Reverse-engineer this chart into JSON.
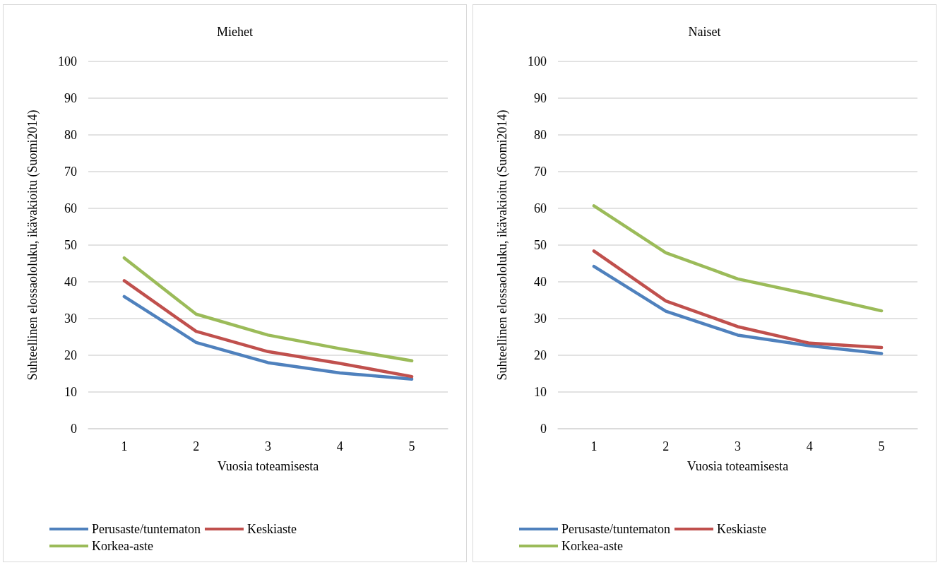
{
  "chart_data": [
    {
      "type": "line",
      "title": "Miehet",
      "xlabel": "Vuosia toteamisesta",
      "ylabel": "Suhteellinen elossaololuku, ikävakioitu (Suomi2014)",
      "categories": [
        "1",
        "2",
        "3",
        "4",
        "5"
      ],
      "ylim": [
        0,
        100
      ],
      "yticks": [
        0,
        10,
        20,
        30,
        40,
        50,
        60,
        70,
        80,
        90,
        100
      ],
      "grid": "y",
      "legend": "bottom",
      "marker": "none",
      "line_style": "solid",
      "series": [
        {
          "name": "Perusaste/tuntematon",
          "color": "#4f81bd",
          "values": [
            36,
            23.5,
            18,
            15.2,
            13.5
          ]
        },
        {
          "name": "Keskiaste",
          "color": "#c0504d",
          "values": [
            40.3,
            26.5,
            21,
            17.8,
            14.2
          ]
        },
        {
          "name": "Korkea-aste",
          "color": "#9bbb59",
          "values": [
            46.5,
            31.2,
            25.5,
            21.8,
            18.5
          ]
        }
      ]
    },
    {
      "type": "line",
      "title": "Naiset",
      "xlabel": "Vuosia toteamisesta",
      "ylabel": "Suhteellinen elossaololuku, ikävakioitu (Suomi2014)",
      "categories": [
        "1",
        "2",
        "3",
        "4",
        "5"
      ],
      "ylim": [
        0,
        100
      ],
      "yticks": [
        0,
        10,
        20,
        30,
        40,
        50,
        60,
        70,
        80,
        90,
        100
      ],
      "grid": "y",
      "legend": "bottom",
      "marker": "none",
      "line_style": "solid",
      "series": [
        {
          "name": "Perusaste/tuntematon",
          "color": "#4f81bd",
          "values": [
            44.2,
            32,
            25.5,
            22.6,
            20.5
          ]
        },
        {
          "name": "Keskiaste",
          "color": "#c0504d",
          "values": [
            48.4,
            34.8,
            27.8,
            23.3,
            22.1
          ]
        },
        {
          "name": "Korkea-aste",
          "color": "#9bbb59",
          "values": [
            60.7,
            47.9,
            40.8,
            36.6,
            32.1
          ]
        }
      ]
    }
  ]
}
